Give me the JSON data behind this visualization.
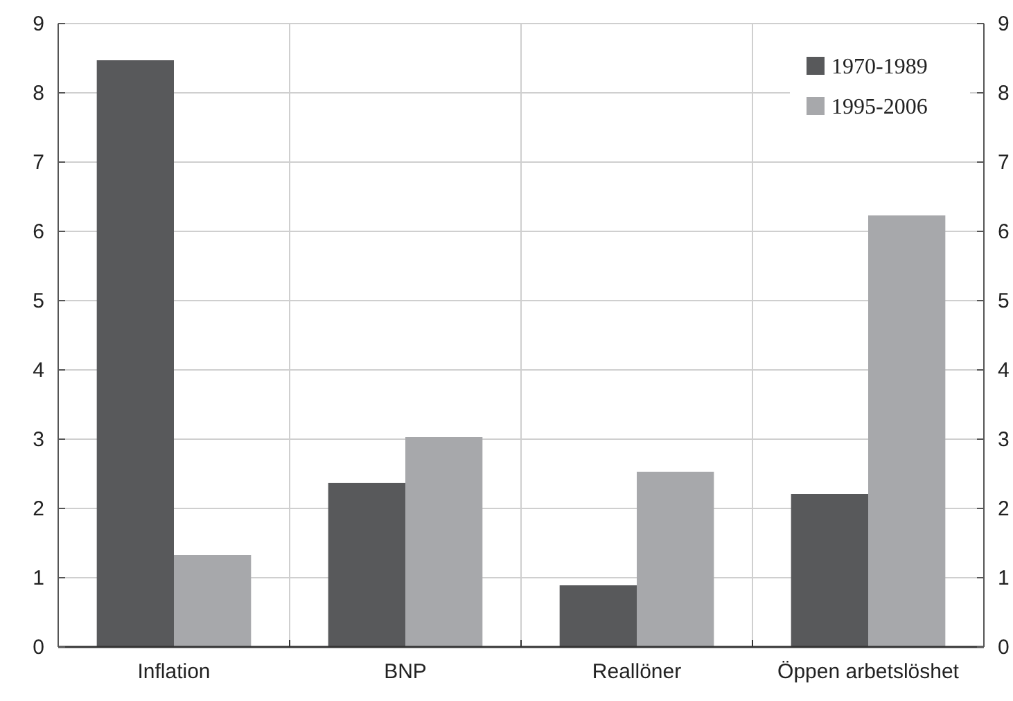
{
  "chart_data": {
    "type": "bar",
    "categories": [
      "Inflation",
      "BNP",
      "Reallöner",
      "Öppen arbetslöshet"
    ],
    "series": [
      {
        "name": "1970-1989",
        "color": "#58595b",
        "values": [
          8.47,
          2.37,
          0.89,
          2.21
        ]
      },
      {
        "name": "1995-2006",
        "color": "#a7a8ab",
        "values": [
          1.33,
          3.03,
          2.53,
          6.23
        ]
      }
    ],
    "ylim": [
      0,
      9
    ],
    "yticks": [
      0,
      1,
      2,
      3,
      4,
      5,
      6,
      7,
      8,
      9
    ],
    "y2lim": [
      0,
      9
    ],
    "y2ticks": [
      0,
      1,
      2,
      3,
      4,
      5,
      6,
      7,
      8,
      9
    ],
    "grid": true,
    "legend": "top right"
  }
}
